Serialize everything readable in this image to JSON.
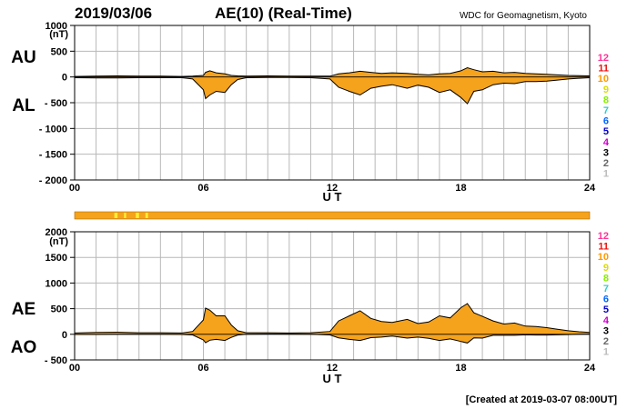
{
  "header": {
    "date": "2019/03/06",
    "title": "AE(10) (Real-Time)",
    "source": "WDC for Geomagnetism, Kyoto"
  },
  "footer": {
    "created": "[Created at 2019-03-07 08:00UT]"
  },
  "colors": {
    "fill": "#f5a21c",
    "line": "#000000",
    "grid": "#b8b8b8",
    "bar": "#f5a21c",
    "bar_marks": "#ffee33"
  },
  "station_legend": [
    {
      "label": "12",
      "color": "#ff3399"
    },
    {
      "label": "11",
      "color": "#ee1111"
    },
    {
      "label": "10",
      "color": "#ff9900"
    },
    {
      "label": "9",
      "color": "#dddd00"
    },
    {
      "label": "8",
      "color": "#88ee00"
    },
    {
      "label": "7",
      "color": "#33cccc"
    },
    {
      "label": "6",
      "color": "#0066ff"
    },
    {
      "label": "5",
      "color": "#0000cc"
    },
    {
      "label": "4",
      "color": "#cc00cc"
    },
    {
      "label": "3",
      "color": "#000000"
    },
    {
      "label": "2",
      "color": "#666666"
    },
    {
      "label": "1",
      "color": "#bbbbbb"
    }
  ],
  "chart_data": [
    {
      "type": "area",
      "panel": "AU/AL",
      "labels": {
        "upper": "AU",
        "lower": "AL"
      },
      "unit": "(nT)",
      "xlabel": "U T",
      "xlim": [
        0,
        24
      ],
      "xticks": [
        0,
        6,
        12,
        18,
        24
      ],
      "xtick_labels": [
        "00",
        "06",
        "12",
        "18",
        "24"
      ],
      "ylim": [
        -2000,
        1000
      ],
      "yticks": [
        1000,
        500,
        0,
        -500,
        -1000,
        -1500,
        -2000
      ],
      "ytick_labels": [
        "1000",
        "500",
        "0",
        "- 500",
        "- 1000",
        "- 1500",
        "- 2000"
      ],
      "grid": true,
      "series": [
        {
          "name": "AU",
          "x": [
            0,
            1,
            2,
            3,
            4,
            5,
            5.5,
            6,
            6.1,
            6.3,
            6.6,
            7,
            7.3,
            7.6,
            8,
            9,
            10,
            11,
            11.9,
            12.3,
            12.8,
            13.3,
            13.8,
            14.3,
            14.8,
            15.5,
            16,
            16.5,
            17,
            17.5,
            18,
            18.3,
            18.6,
            19,
            19.5,
            20,
            20.5,
            21,
            21.5,
            22,
            22.5,
            23,
            23.5,
            24
          ],
          "y": [
            10,
            15,
            20,
            15,
            15,
            10,
            15,
            30,
            90,
            120,
            80,
            60,
            30,
            20,
            15,
            20,
            15,
            15,
            15,
            60,
            80,
            110,
            90,
            70,
            80,
            70,
            50,
            40,
            60,
            70,
            120,
            180,
            140,
            100,
            110,
            80,
            90,
            70,
            60,
            50,
            40,
            30,
            25,
            20
          ]
        },
        {
          "name": "AL",
          "x": [
            0,
            1,
            2,
            3,
            4,
            5,
            5.5,
            6,
            6.1,
            6.3,
            6.6,
            7,
            7.3,
            7.6,
            8,
            9,
            10,
            11,
            11.9,
            12.3,
            12.8,
            13.3,
            13.8,
            14.3,
            14.8,
            15.5,
            16,
            16.5,
            17,
            17.5,
            18,
            18.3,
            18.6,
            19,
            19.5,
            20,
            20.5,
            21,
            21.5,
            22,
            22.5,
            23,
            23.5,
            24
          ],
          "y": [
            -15,
            -20,
            -20,
            -15,
            -15,
            -15,
            -40,
            -250,
            -420,
            -350,
            -280,
            -300,
            -150,
            -50,
            -15,
            -10,
            -10,
            -15,
            -40,
            -200,
            -280,
            -350,
            -220,
            -180,
            -150,
            -220,
            -160,
            -200,
            -300,
            -250,
            -400,
            -520,
            -280,
            -250,
            -150,
            -120,
            -130,
            -90,
            -90,
            -80,
            -60,
            -40,
            -25,
            -15
          ]
        }
      ]
    },
    {
      "type": "area",
      "panel": "AE/AO",
      "labels": {
        "upper": "AE",
        "lower": "AO"
      },
      "unit": "(nT)",
      "xlabel": "U T",
      "xlim": [
        0,
        24
      ],
      "xticks": [
        0,
        6,
        12,
        18,
        24
      ],
      "xtick_labels": [
        "00",
        "06",
        "12",
        "18",
        "24"
      ],
      "ylim": [
        -500,
        2000
      ],
      "yticks": [
        2000,
        1500,
        1000,
        500,
        0,
        -500
      ],
      "ytick_labels": [
        "2000",
        "1500",
        "1000",
        "500",
        "0",
        "- 500"
      ],
      "grid": true,
      "series": [
        {
          "name": "AE",
          "x": [
            0,
            1,
            2,
            3,
            4,
            5,
            5.5,
            6,
            6.1,
            6.3,
            6.6,
            7,
            7.3,
            7.6,
            8,
            9,
            10,
            11,
            11.9,
            12.3,
            12.8,
            13.3,
            13.8,
            14.3,
            14.8,
            15.5,
            16,
            16.5,
            17,
            17.5,
            18,
            18.3,
            18.6,
            19,
            19.5,
            20,
            20.5,
            21,
            21.5,
            22,
            22.5,
            23,
            23.5,
            24
          ],
          "y": [
            25,
            35,
            40,
            30,
            30,
            25,
            55,
            280,
            510,
            470,
            360,
            360,
            180,
            70,
            30,
            30,
            25,
            30,
            55,
            260,
            360,
            460,
            310,
            250,
            230,
            290,
            210,
            240,
            360,
            320,
            520,
            600,
            420,
            350,
            260,
            200,
            220,
            160,
            150,
            130,
            100,
            70,
            50,
            35
          ]
        },
        {
          "name": "AO",
          "x": [
            0,
            1,
            2,
            3,
            4,
            5,
            5.5,
            6,
            6.1,
            6.3,
            6.6,
            7,
            7.3,
            7.6,
            8,
            9,
            10,
            11,
            11.9,
            12.3,
            12.8,
            13.3,
            13.8,
            14.3,
            14.8,
            15.5,
            16,
            16.5,
            17,
            17.5,
            18,
            18.3,
            18.6,
            19,
            19.5,
            20,
            20.5,
            21,
            21.5,
            22,
            22.5,
            23,
            23.5,
            24
          ],
          "y": [
            -3,
            -3,
            0,
            0,
            0,
            -3,
            -13,
            -110,
            -165,
            -115,
            -100,
            -120,
            -60,
            -15,
            0,
            5,
            3,
            0,
            -13,
            -70,
            -100,
            -120,
            -65,
            -55,
            -35,
            -75,
            -55,
            -80,
            -120,
            -90,
            -140,
            -170,
            -70,
            -75,
            -20,
            -20,
            -20,
            -10,
            -15,
            -15,
            -10,
            -5,
            0,
            3
          ]
        }
      ]
    }
  ],
  "status_bar": {
    "color": "#f5a21c",
    "marks": [
      {
        "x": 1.85,
        "w": 0.15
      },
      {
        "x": 2.3,
        "w": 0.1
      },
      {
        "x": 2.85,
        "w": 0.15
      },
      {
        "x": 3.3,
        "w": 0.12
      }
    ]
  }
}
